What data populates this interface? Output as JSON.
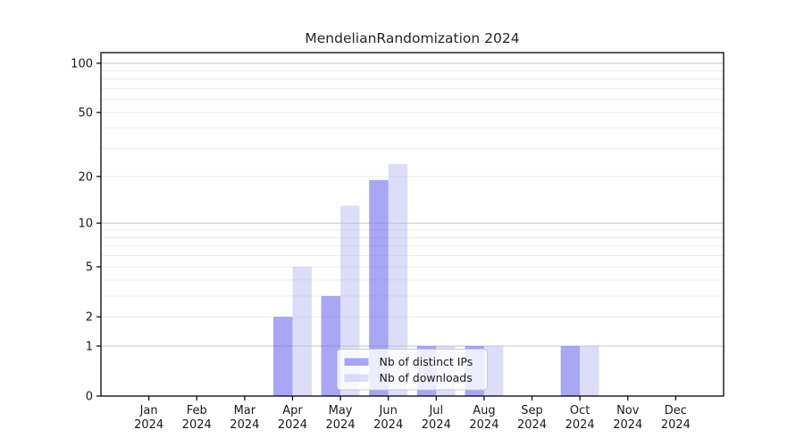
{
  "chart_data": {
    "type": "bar",
    "title": "MendelianRandomization 2024",
    "categories": [
      "Jan",
      "Feb",
      "Mar",
      "Apr",
      "May",
      "Jun",
      "Jul",
      "Aug",
      "Sep",
      "Oct",
      "Nov",
      "Dec"
    ],
    "year_label": "2024",
    "series": [
      {
        "name": "Nb of distinct IPs",
        "color": "#7878ee",
        "opacity": 0.65,
        "values": [
          0,
          0,
          0,
          2,
          3,
          19,
          1,
          1,
          0,
          1,
          0,
          0
        ]
      },
      {
        "name": "Nb of downloads",
        "color": "#b4b4f2",
        "opacity": 0.45,
        "values": [
          0,
          0,
          0,
          5,
          13,
          24,
          1,
          1,
          0,
          1,
          0,
          0
        ]
      }
    ],
    "yscale": "log1p",
    "ylim": [
      0,
      116
    ],
    "yticks": [
      0,
      1,
      2,
      5,
      10,
      20,
      50,
      100
    ],
    "major_gridlines": [
      1,
      10,
      100
    ],
    "minor_gridlines": [
      2,
      3,
      4,
      5,
      6,
      7,
      8,
      9,
      20,
      30,
      40,
      50,
      60,
      70,
      80,
      90
    ],
    "grid": "on",
    "xlabel": "",
    "ylabel": "",
    "legend": {
      "position": "bottom-center",
      "entries": [
        "Nb of distinct IPs",
        "Nb of downloads"
      ]
    },
    "colors": {
      "axis": "#000000",
      "tick_label": "#1a1a1a",
      "grid_minor": "#ececec",
      "grid_major": "#c5c5c5",
      "legend_border": "#cccccc",
      "legend_background": "rgba(255,255,255,0.8)",
      "plot_background": "#ffffff"
    }
  }
}
